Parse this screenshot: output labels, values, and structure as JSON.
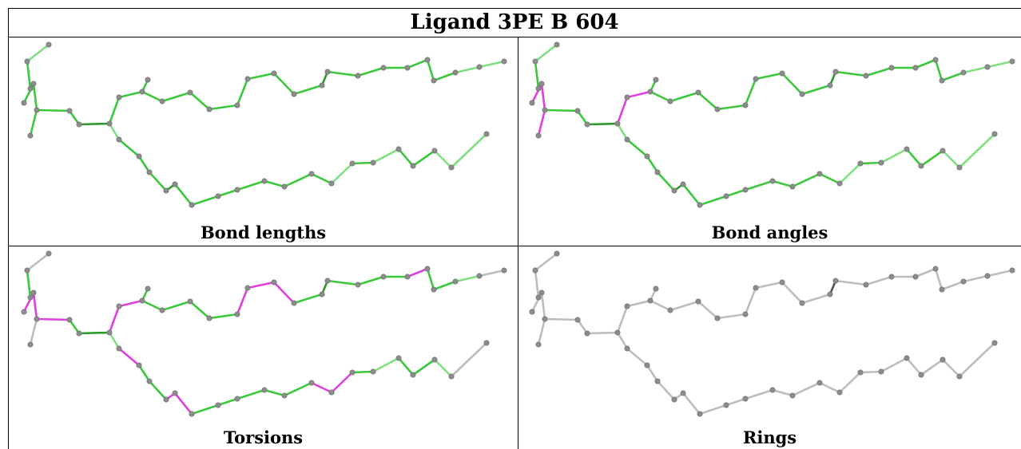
{
  "title": "Ligand 3PE B 604",
  "panels": [
    {
      "id": "bond-lengths",
      "caption": "Bond lengths",
      "mode": "lengths"
    },
    {
      "id": "bond-angles",
      "caption": "Bond angles",
      "mode": "angles"
    },
    {
      "id": "torsions",
      "caption": "Torsions",
      "mode": "torsions"
    },
    {
      "id": "rings",
      "caption": "Rings",
      "mode": "rings"
    }
  ],
  "colors": {
    "bond_green": "#3cc83c",
    "bond_light_green": "#7fe07f",
    "bond_dark_green": "#2a9a2a",
    "bond_dark": "#555555",
    "highlight_magenta": "#e040e0",
    "bond_gray": "#bdbdbd",
    "atom_gray": "#8c8c8c",
    "grid_line": "#000000"
  }
}
